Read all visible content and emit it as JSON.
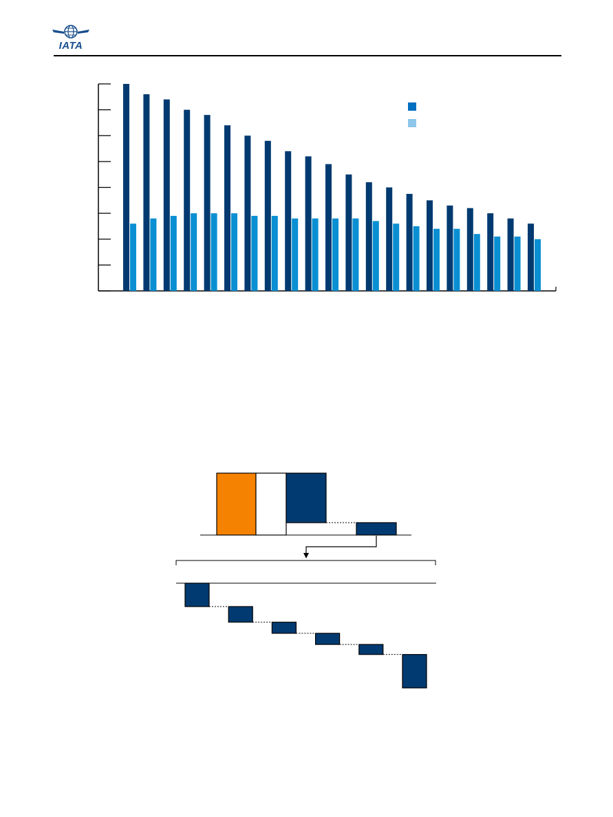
{
  "header": {
    "logo_text": "IATA",
    "logo_icon": "globe-wings-icon"
  },
  "colors": {
    "navy": "#003a70",
    "blue": "#0a8fd2",
    "legend_dark": "#0070c0",
    "legend_light": "#8fc6ea",
    "orange": "#f58200"
  },
  "chart_data": [
    {
      "type": "bar",
      "title": "",
      "xlabel": "",
      "ylabel": "",
      "ylim": [
        0,
        8
      ],
      "grid": false,
      "legend_position": "top-right",
      "legend": [
        {
          "name": "",
          "color": "#0070c0"
        },
        {
          "name": "",
          "color": "#8fc6ea"
        }
      ],
      "categories": [
        "",
        "",
        "",
        "",
        "",
        "",
        "",
        "",
        "",
        "",
        "",
        "",
        "",
        "",
        "",
        "",
        "",
        "",
        "",
        "",
        "",
        ""
      ],
      "series": [
        {
          "color": "#003a70",
          "values": [
            8.0,
            7.6,
            7.4,
            7.0,
            6.8,
            6.4,
            6.0,
            5.8,
            5.4,
            5.2,
            4.9,
            4.5,
            4.2,
            4.0,
            3.75,
            3.5,
            3.3,
            3.2,
            3.0,
            2.8,
            2.6,
            0
          ]
        },
        {
          "color": "#0a8fd2",
          "values": [
            2.6,
            2.8,
            2.9,
            3.0,
            3.0,
            3.0,
            2.9,
            2.9,
            2.8,
            2.8,
            2.8,
            2.8,
            2.7,
            2.6,
            2.5,
            2.4,
            2.4,
            2.2,
            2.1,
            2.1,
            2.0,
            0
          ]
        }
      ]
    },
    {
      "type": "waterfall",
      "title": "",
      "top_panel": {
        "steps": [
          {
            "kind": "total",
            "start": 0,
            "end": 1.0,
            "color": "#f58200"
          },
          {
            "kind": "total",
            "start": 0,
            "end": 1.0,
            "color": "#ffffff"
          },
          {
            "kind": "delta",
            "start": 1.0,
            "end": 0.2,
            "color": "#003a70"
          },
          {
            "kind": "delta",
            "start": 0.2,
            "end": 0.0,
            "color": "#003a70"
          }
        ]
      },
      "bottom_panel": {
        "steps": [
          {
            "kind": "delta",
            "start": 0,
            "end": -0.42,
            "color": "#003a70"
          },
          {
            "kind": "delta",
            "start": -0.42,
            "end": -0.7,
            "color": "#003a70"
          },
          {
            "kind": "delta",
            "start": -0.7,
            "end": -0.9,
            "color": "#003a70"
          },
          {
            "kind": "delta",
            "start": -0.9,
            "end": -1.1,
            "color": "#003a70"
          },
          {
            "kind": "delta",
            "start": -1.1,
            "end": -1.28,
            "color": "#003a70"
          },
          {
            "kind": "delta",
            "start": -1.28,
            "end": -1.88,
            "color": "#003a70"
          }
        ]
      }
    }
  ]
}
